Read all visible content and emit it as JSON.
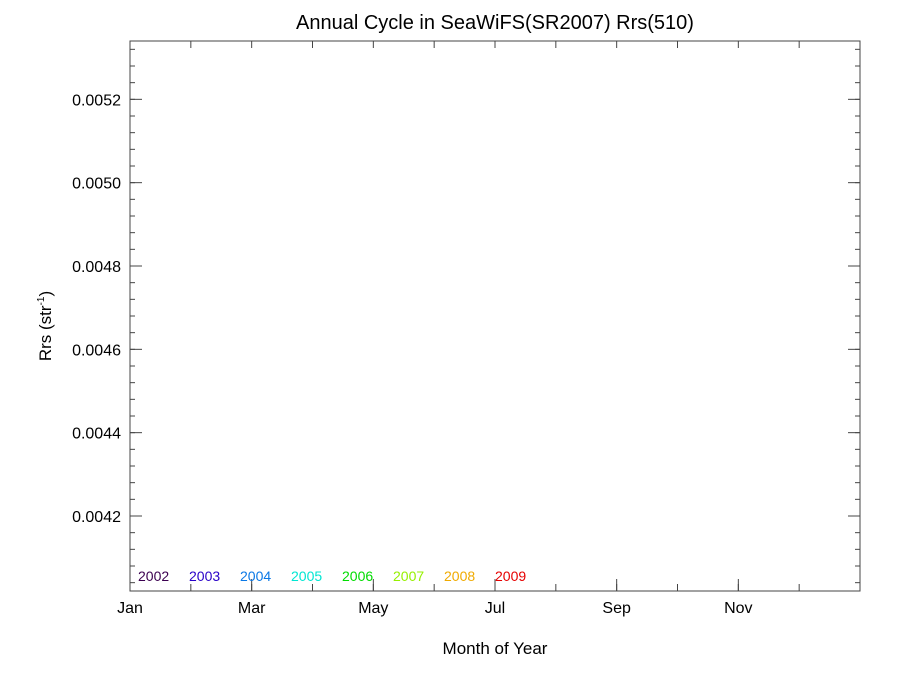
{
  "chart_data": {
    "type": "line",
    "title": "Annual Cycle in SeaWiFS(SR2007) Rrs(510)",
    "xlabel": "Month of Year",
    "ylabel_main": "Rrs (str",
    "ylabel_sup": "-1",
    "ylabel_close": ")",
    "xlim": [
      0,
      12
    ],
    "ylim": [
      0.00402,
      0.00534
    ],
    "x_ticks": [
      {
        "value": 0,
        "label": "Jan"
      },
      {
        "value": 2,
        "label": "Mar"
      },
      {
        "value": 4,
        "label": "May"
      },
      {
        "value": 6,
        "label": "Jul"
      },
      {
        "value": 8,
        "label": "Sep"
      },
      {
        "value": 10,
        "label": "Nov"
      }
    ],
    "x_minor_step": 1,
    "y_ticks": [
      {
        "value": 0.0042,
        "label": "0.0042"
      },
      {
        "value": 0.0044,
        "label": "0.0044"
      },
      {
        "value": 0.0046,
        "label": "0.0046"
      },
      {
        "value": 0.0048,
        "label": "0.0048"
      },
      {
        "value": 0.005,
        "label": "0.0050"
      },
      {
        "value": 0.0052,
        "label": "0.0052"
      }
    ],
    "y_minor_step": 4e-05,
    "grid": false,
    "legend_position": "bottom-left",
    "series": [
      {
        "name": "2002",
        "color": "#3b0050",
        "values": []
      },
      {
        "name": "2003",
        "color": "#2800c8",
        "values": []
      },
      {
        "name": "2004",
        "color": "#0a78e6",
        "values": []
      },
      {
        "name": "2005",
        "color": "#00e6d2",
        "values": []
      },
      {
        "name": "2006",
        "color": "#00dc00",
        "values": []
      },
      {
        "name": "2007",
        "color": "#96f000",
        "values": []
      },
      {
        "name": "2008",
        "color": "#f0aa00",
        "values": []
      },
      {
        "name": "2009",
        "color": "#e60000",
        "values": []
      }
    ]
  }
}
